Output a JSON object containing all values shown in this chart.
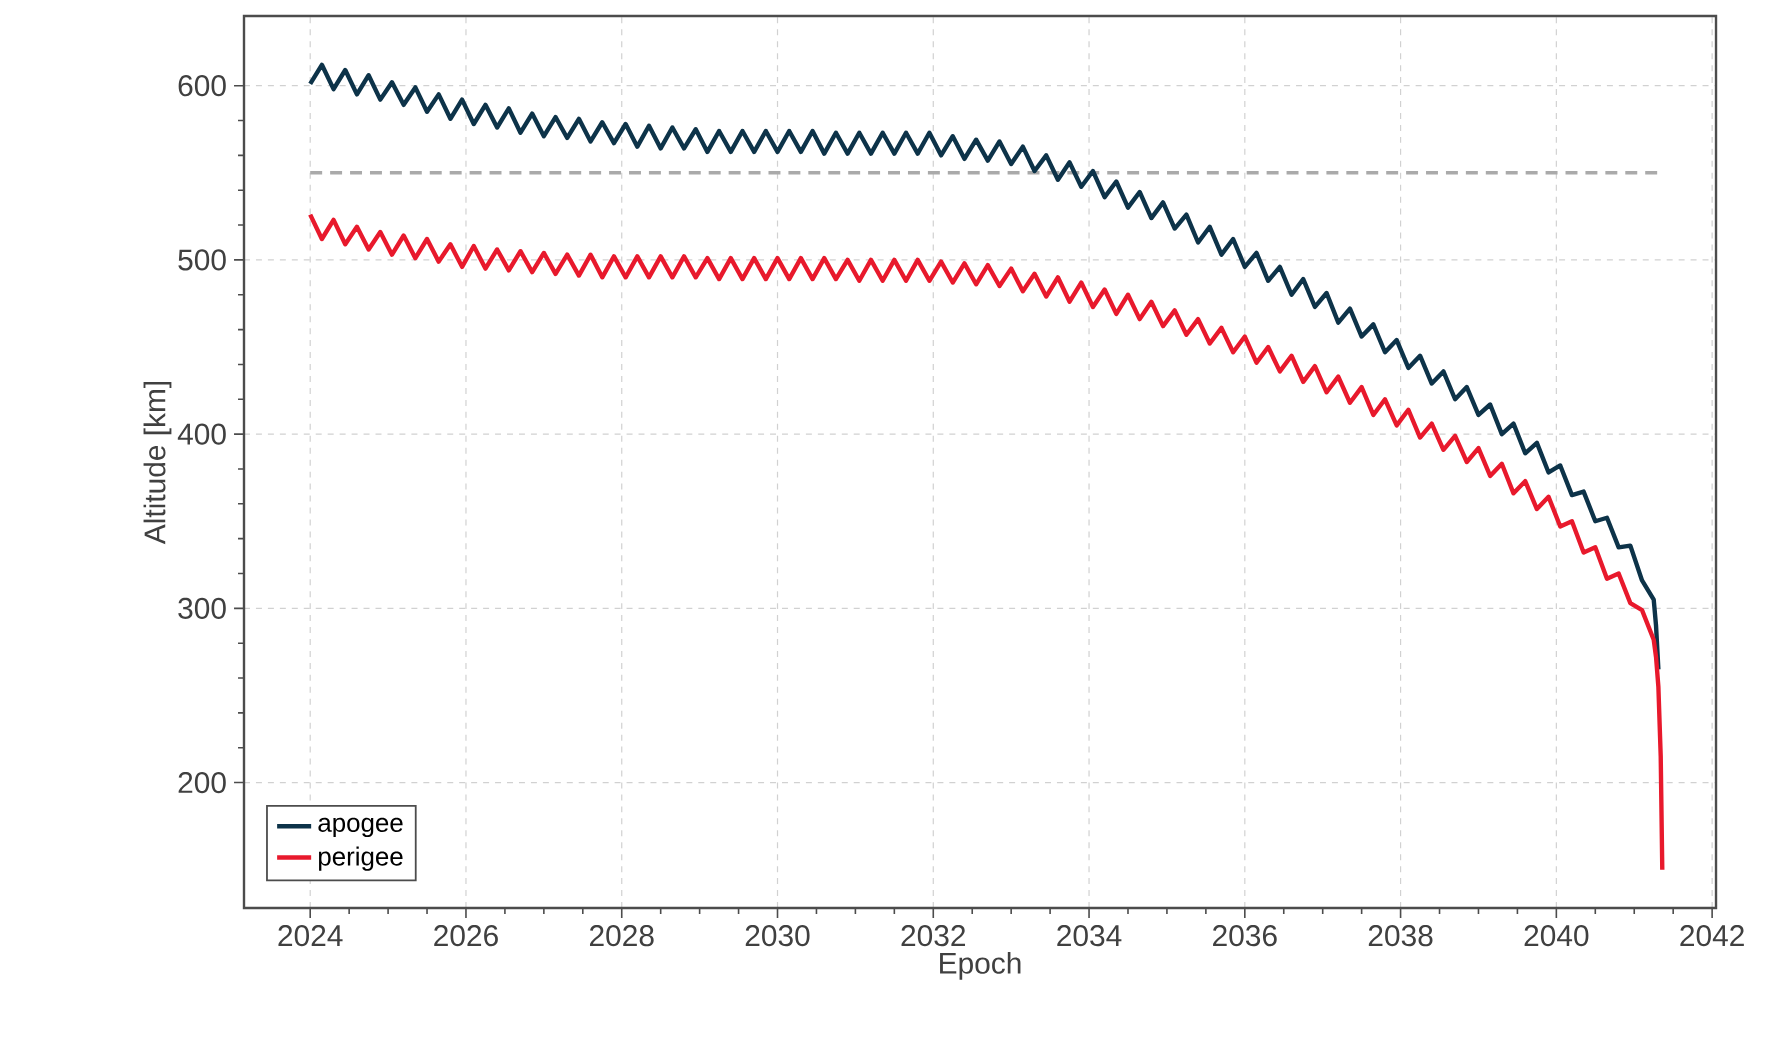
{
  "chart_data": {
    "type": "line",
    "xlabel": "Epoch",
    "ylabel": "Altitude [km]",
    "x": [
      2024.0,
      2024.15,
      2024.3,
      2024.45,
      2024.6,
      2024.75,
      2024.9,
      2025.05,
      2025.2,
      2025.35,
      2025.5,
      2025.65,
      2025.8,
      2025.95,
      2026.1,
      2026.25,
      2026.4,
      2026.55,
      2026.7,
      2026.85,
      2027.0,
      2027.15,
      2027.3,
      2027.45,
      2027.6,
      2027.75,
      2027.9,
      2028.05,
      2028.2,
      2028.35,
      2028.5,
      2028.65,
      2028.8,
      2028.95,
      2029.1,
      2029.25,
      2029.4,
      2029.55,
      2029.7,
      2029.85,
      2030.0,
      2030.15,
      2030.3,
      2030.45,
      2030.6,
      2030.75,
      2030.9,
      2031.05,
      2031.2,
      2031.35,
      2031.5,
      2031.65,
      2031.8,
      2031.95,
      2032.1,
      2032.25,
      2032.4,
      2032.55,
      2032.7,
      2032.85,
      2033.0,
      2033.15,
      2033.3,
      2033.45,
      2033.6,
      2033.75,
      2033.9,
      2034.05,
      2034.2,
      2034.35,
      2034.5,
      2034.65,
      2034.8,
      2034.95,
      2035.1,
      2035.25,
      2035.4,
      2035.55,
      2035.7,
      2035.85,
      2036.0,
      2036.15,
      2036.3,
      2036.45,
      2036.6,
      2036.75,
      2036.9,
      2037.05,
      2037.2,
      2037.35,
      2037.5,
      2037.65,
      2037.8,
      2037.95,
      2038.1,
      2038.25,
      2038.4,
      2038.55,
      2038.7,
      2038.85,
      2039.0,
      2039.15,
      2039.3,
      2039.45,
      2039.6,
      2039.75,
      2039.9,
      2040.05,
      2040.2,
      2040.35,
      2040.5,
      2040.65,
      2040.8,
      2040.95,
      2041.1,
      2041.25,
      2041.28,
      2041.31,
      2041.34,
      2041.36
    ],
    "series": [
      {
        "name": "apogee",
        "color": "#0d3349",
        "values": [
          601,
          612,
          598,
          609,
          595,
          606,
          592,
          602,
          589,
          599,
          585,
          595,
          581,
          592,
          578,
          589,
          576,
          587,
          573,
          584,
          571,
          582,
          570,
          581,
          568,
          579,
          567,
          578,
          565,
          577,
          564,
          576,
          564,
          575,
          562,
          574,
          562,
          574,
          562,
          574,
          562,
          574,
          562,
          574,
          561,
          573,
          561,
          573,
          561,
          573,
          561,
          573,
          561,
          573,
          560,
          571,
          558,
          569,
          557,
          568,
          555,
          565,
          551,
          560,
          546,
          556,
          542,
          551,
          536,
          545,
          530,
          539,
          524,
          533,
          518,
          526,
          510,
          519,
          503,
          512,
          496,
          504,
          488,
          496,
          480,
          489,
          473,
          481,
          464,
          472,
          456,
          463,
          447,
          454,
          438,
          445,
          429,
          436,
          420,
          427,
          411,
          417,
          400,
          406,
          389,
          395,
          378,
          382,
          365,
          367,
          350,
          352,
          335,
          336,
          316,
          305,
          290,
          265,
          null,
          null
        ]
      },
      {
        "name": "perigee",
        "color": "#e8192c",
        "values": [
          526,
          512,
          523,
          509,
          519,
          506,
          516,
          503,
          514,
          501,
          512,
          499,
          509,
          496,
          508,
          495,
          506,
          494,
          505,
          493,
          504,
          492,
          503,
          491,
          503,
          490,
          502,
          490,
          502,
          490,
          502,
          490,
          502,
          490,
          501,
          489,
          501,
          489,
          501,
          489,
          501,
          489,
          501,
          489,
          501,
          489,
          500,
          488,
          500,
          488,
          500,
          488,
          500,
          488,
          499,
          487,
          498,
          486,
          497,
          485,
          495,
          482,
          492,
          479,
          490,
          476,
          487,
          473,
          483,
          469,
          480,
          466,
          476,
          462,
          471,
          457,
          466,
          452,
          461,
          447,
          456,
          441,
          450,
          436,
          445,
          430,
          439,
          424,
          433,
          418,
          427,
          411,
          420,
          405,
          414,
          398,
          406,
          391,
          399,
          384,
          392,
          376,
          383,
          366,
          373,
          357,
          364,
          347,
          350,
          332,
          335,
          317,
          320,
          303,
          299,
          282,
          272,
          255,
          215,
          150
        ]
      }
    ],
    "ref_lines": [
      {
        "axis": "y",
        "value": 550,
        "color": "#aaaaaa",
        "line_style": "dashed"
      }
    ],
    "xlim": [
      2023.15,
      2042.05
    ],
    "ylim": [
      128,
      640
    ],
    "xticks": [
      2024,
      2026,
      2028,
      2030,
      2032,
      2034,
      2036,
      2038,
      2040,
      2042
    ],
    "yticks": [
      200,
      300,
      400,
      500,
      600
    ],
    "grid": true,
    "legend": "bottom left",
    "marker": "none",
    "line_style": "solid"
  }
}
